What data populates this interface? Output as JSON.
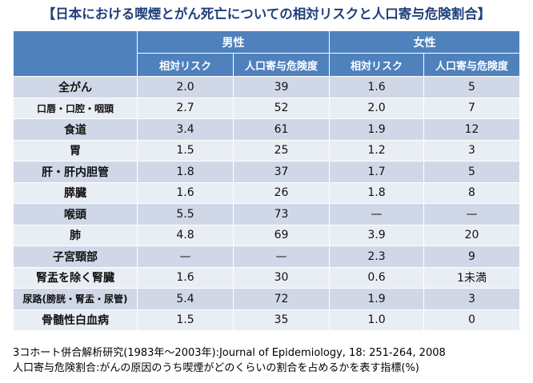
{
  "title": "【日本における喫煙とがん死亡についての相対リスクと人口寄与危険割合】",
  "header": {
    "male": "男性",
    "female": "女性",
    "relative_risk": "相対リスク",
    "paf": "人口寄与危険度",
    "paf_female": "人口寄与危険度"
  },
  "rows": [
    {
      "label": "全がん",
      "m_rr": "2.0",
      "m_paf": "39",
      "f_rr": "1.6",
      "f_paf": "5"
    },
    {
      "label": "口唇・口腔・咽頭",
      "m_rr": "2.7",
      "m_paf": "52",
      "f_rr": "2.0",
      "f_paf": "7"
    },
    {
      "label": "食道",
      "m_rr": "3.4",
      "m_paf": "61",
      "f_rr": "1.9",
      "f_paf": "12"
    },
    {
      "label": "胃",
      "m_rr": "1.5",
      "m_paf": "25",
      "f_rr": "1.2",
      "f_paf": "3"
    },
    {
      "label": "肝・肝内胆管",
      "m_rr": "1.8",
      "m_paf": "37",
      "f_rr": "1.7",
      "f_paf": "5"
    },
    {
      "label": "膵臓",
      "m_rr": "1.6",
      "m_paf": "26",
      "f_rr": "1.8",
      "f_paf": "8"
    },
    {
      "label": "喉頭",
      "m_rr": "5.5",
      "m_paf": "73",
      "f_rr": "—",
      "f_paf": "—"
    },
    {
      "label": "肺",
      "m_rr": "4.8",
      "m_paf": "69",
      "f_rr": "3.9",
      "f_paf": "20"
    },
    {
      "label": "子宮頸部",
      "m_rr": "—",
      "m_paf": "—",
      "f_rr": "2.3",
      "f_paf": "9"
    },
    {
      "label": "腎盂を除く腎臓",
      "m_rr": "1.6",
      "m_paf": "30",
      "f_rr": "0.6",
      "f_paf": "1未満"
    },
    {
      "label": "尿路(膀胱・腎盂・尿管)",
      "m_rr": "5.4",
      "m_paf": "72",
      "f_rr": "1.9",
      "f_paf": "3"
    },
    {
      "label": "骨髄性白血病",
      "m_rr": "1.5",
      "m_paf": "35",
      "f_rr": "1.0",
      "f_paf": "0"
    }
  ],
  "notes": {
    "line1": "3コホート併合解析研究(1983年～2003年):Journal of Epidemiology, 18: 251-264, 2008",
    "line2": "人口寄与危険割合:がんの原因のうち喫煙がどのくらいの割合を占めるかを表す指標(%)"
  }
}
